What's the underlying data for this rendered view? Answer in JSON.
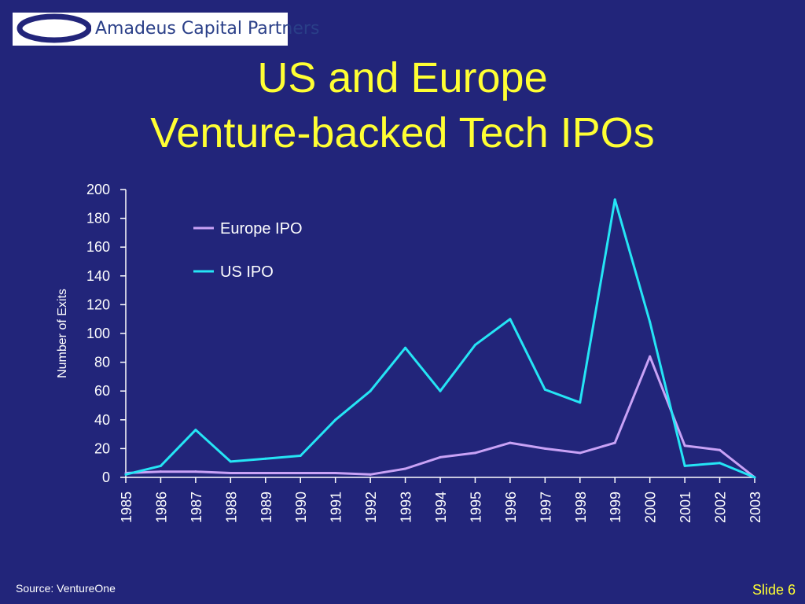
{
  "brand": {
    "name": "Amadeus Capital Partners",
    "logo_icon": "ring-logo-icon"
  },
  "title_lines": [
    "US and Europe",
    "Venture-backed Tech IPOs"
  ],
  "footer": {
    "source": "Source: VentureOne",
    "slide": "Slide 6"
  },
  "colors": {
    "background": "#22257a",
    "title": "#ffff33",
    "axis_text": "#ffffff",
    "europe": "#c9a2f6",
    "us": "#25e5f5"
  },
  "chart_data": {
    "type": "line",
    "title": "US and Europe Venture-backed Tech IPOs",
    "xlabel": "",
    "ylabel": "Number of Exits",
    "ylim": [
      0,
      200
    ],
    "yticks": [
      0,
      20,
      40,
      60,
      80,
      100,
      120,
      140,
      160,
      180,
      200
    ],
    "grid": false,
    "legend_position": "top-left",
    "categories": [
      "1985",
      "1986",
      "1987",
      "1988",
      "1989",
      "1990",
      "1991",
      "1992",
      "1993",
      "1994",
      "1995",
      "1996",
      "1997",
      "1998",
      "1999",
      "2000",
      "2001",
      "2002",
      "2003"
    ],
    "series": [
      {
        "name": "Europe IPO",
        "color": "#c9a2f6",
        "values": [
          3,
          4,
          4,
          3,
          3,
          3,
          3,
          2,
          6,
          14,
          17,
          24,
          20,
          17,
          24,
          84,
          22,
          19,
          0
        ]
      },
      {
        "name": "US IPO",
        "color": "#25e5f5",
        "values": [
          2,
          8,
          33,
          11,
          13,
          15,
          40,
          60,
          90,
          60,
          92,
          110,
          61,
          52,
          193,
          108,
          8,
          10,
          0
        ]
      }
    ]
  }
}
